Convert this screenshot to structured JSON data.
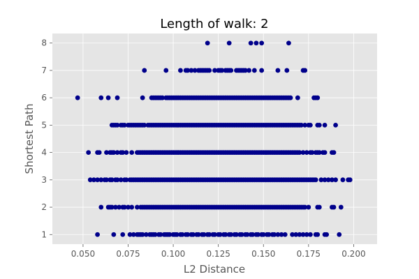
{
  "chart_data": {
    "type": "scatter",
    "title": "Length of walk: 2",
    "xlabel": "L2 Distance",
    "ylabel": "Shortest Path",
    "xlim": [
      0.033,
      0.213
    ],
    "ylim": [
      0.65,
      8.35
    ],
    "x_ticks": [
      0.05,
      0.075,
      0.1,
      0.125,
      0.15,
      0.175,
      0.2
    ],
    "x_tick_labels": [
      "0.050",
      "0.075",
      "0.100",
      "0.125",
      "0.150",
      "0.175",
      "0.200"
    ],
    "y_ticks": [
      1,
      2,
      3,
      4,
      5,
      6,
      7,
      8
    ],
    "y_tick_labels": [
      "1",
      "2",
      "3",
      "4",
      "5",
      "6",
      "7",
      "8"
    ],
    "grid": true,
    "marker_color": "#00008b",
    "background_color": "#e5e5e5",
    "grid_color": "#ffffff",
    "series": [
      {
        "values": [
          {
            "y": 1,
            "x": [
              0.058,
              0.067,
              0.072,
              0.076,
              0.078,
              0.08,
              0.081,
              0.082,
              0.083,
              0.085,
              0.087,
              0.088,
              0.089,
              0.09,
              0.092,
              0.093,
              0.095,
              0.096,
              0.097,
              0.098,
              0.1,
              0.101,
              0.102,
              0.104,
              0.105,
              0.107,
              0.108,
              0.11,
              0.111,
              0.113,
              0.114,
              0.116,
              0.117,
              0.119,
              0.12,
              0.122,
              0.123,
              0.125,
              0.126,
              0.128,
              0.129,
              0.131,
              0.132,
              0.134,
              0.135,
              0.137,
              0.138,
              0.14,
              0.141,
              0.143,
              0.144,
              0.146,
              0.147,
              0.149,
              0.15,
              0.152,
              0.153,
              0.155,
              0.156,
              0.158,
              0.16,
              0.162,
              0.166,
              0.168,
              0.17,
              0.172,
              0.174,
              0.176,
              0.179,
              0.18,
              0.184,
              0.185,
              0.192
            ]
          },
          {
            "y": 2,
            "x": [
              0.06,
              0.064,
              0.065,
              0.066,
              0.068,
              0.07,
              0.072,
              0.073,
              0.075,
              0.077,
              0.08,
              0.082,
              0.083,
              0.084,
              0.085,
              0.086,
              0.087,
              0.088,
              0.089,
              0.09,
              0.091,
              0.092,
              0.093,
              0.094,
              0.095,
              0.096,
              0.097,
              0.098,
              0.099,
              0.1,
              0.101,
              0.102,
              0.103,
              0.104,
              0.105,
              0.106,
              0.107,
              0.108,
              0.109,
              0.11,
              0.111,
              0.112,
              0.113,
              0.114,
              0.115,
              0.116,
              0.117,
              0.118,
              0.119,
              0.12,
              0.121,
              0.122,
              0.123,
              0.124,
              0.125,
              0.126,
              0.127,
              0.128,
              0.129,
              0.13,
              0.131,
              0.132,
              0.133,
              0.134,
              0.135,
              0.136,
              0.137,
              0.138,
              0.139,
              0.14,
              0.141,
              0.142,
              0.143,
              0.144,
              0.145,
              0.146,
              0.147,
              0.148,
              0.149,
              0.15,
              0.151,
              0.152,
              0.153,
              0.154,
              0.155,
              0.156,
              0.157,
              0.158,
              0.159,
              0.16,
              0.161,
              0.162,
              0.163,
              0.164,
              0.165,
              0.166,
              0.167,
              0.168,
              0.169,
              0.17,
              0.171,
              0.172,
              0.173,
              0.175,
              0.18,
              0.181,
              0.188,
              0.189,
              0.193
            ]
          },
          {
            "y": 3,
            "x": [
              0.054,
              0.056,
              0.058,
              0.06,
              0.062,
              0.063,
              0.065,
              0.066,
              0.068,
              0.069,
              0.071,
              0.073,
              0.074,
              0.076,
              0.077,
              0.078,
              0.079,
              0.08,
              0.081,
              0.082,
              0.083,
              0.084,
              0.085,
              0.086,
              0.087,
              0.088,
              0.089,
              0.09,
              0.091,
              0.092,
              0.093,
              0.094,
              0.095,
              0.096,
              0.097,
              0.098,
              0.099,
              0.1,
              0.101,
              0.102,
              0.103,
              0.104,
              0.105,
              0.106,
              0.107,
              0.108,
              0.109,
              0.11,
              0.111,
              0.112,
              0.113,
              0.114,
              0.115,
              0.116,
              0.117,
              0.118,
              0.119,
              0.12,
              0.121,
              0.122,
              0.123,
              0.124,
              0.125,
              0.126,
              0.127,
              0.128,
              0.129,
              0.13,
              0.131,
              0.132,
              0.133,
              0.134,
              0.135,
              0.136,
              0.137,
              0.138,
              0.139,
              0.14,
              0.141,
              0.142,
              0.143,
              0.144,
              0.145,
              0.146,
              0.147,
              0.148,
              0.149,
              0.15,
              0.151,
              0.152,
              0.153,
              0.154,
              0.155,
              0.156,
              0.157,
              0.158,
              0.159,
              0.16,
              0.161,
              0.162,
              0.163,
              0.164,
              0.165,
              0.166,
              0.167,
              0.168,
              0.169,
              0.17,
              0.171,
              0.172,
              0.173,
              0.174,
              0.175,
              0.176,
              0.177,
              0.178,
              0.179,
              0.182,
              0.184,
              0.186,
              0.188,
              0.19,
              0.194,
              0.197,
              0.198
            ]
          },
          {
            "y": 4,
            "x": [
              0.053,
              0.058,
              0.059,
              0.063,
              0.065,
              0.066,
              0.067,
              0.069,
              0.071,
              0.072,
              0.074,
              0.077,
              0.08,
              0.081,
              0.082,
              0.083,
              0.084,
              0.085,
              0.086,
              0.087,
              0.088,
              0.089,
              0.09,
              0.091,
              0.092,
              0.093,
              0.094,
              0.095,
              0.096,
              0.097,
              0.098,
              0.099,
              0.1,
              0.101,
              0.102,
              0.103,
              0.104,
              0.105,
              0.106,
              0.107,
              0.108,
              0.109,
              0.11,
              0.111,
              0.112,
              0.113,
              0.114,
              0.115,
              0.116,
              0.117,
              0.118,
              0.119,
              0.12,
              0.121,
              0.122,
              0.123,
              0.124,
              0.125,
              0.126,
              0.127,
              0.128,
              0.129,
              0.13,
              0.131,
              0.132,
              0.133,
              0.134,
              0.135,
              0.136,
              0.137,
              0.138,
              0.139,
              0.14,
              0.141,
              0.142,
              0.143,
              0.144,
              0.145,
              0.146,
              0.147,
              0.148,
              0.149,
              0.15,
              0.151,
              0.152,
              0.153,
              0.154,
              0.155,
              0.156,
              0.157,
              0.158,
              0.159,
              0.16,
              0.161,
              0.162,
              0.163,
              0.164,
              0.165,
              0.166,
              0.167,
              0.168,
              0.169,
              0.17,
              0.172,
              0.174,
              0.176,
              0.177,
              0.179,
              0.18,
              0.181,
              0.183,
              0.184,
              0.188,
              0.189
            ]
          },
          {
            "y": 5,
            "x": [
              0.066,
              0.067,
              0.068,
              0.069,
              0.071,
              0.072,
              0.073,
              0.075,
              0.076,
              0.077,
              0.078,
              0.079,
              0.08,
              0.081,
              0.082,
              0.083,
              0.084,
              0.086,
              0.087,
              0.088,
              0.089,
              0.09,
              0.091,
              0.092,
              0.093,
              0.094,
              0.095,
              0.096,
              0.097,
              0.098,
              0.099,
              0.1,
              0.101,
              0.102,
              0.103,
              0.104,
              0.105,
              0.106,
              0.107,
              0.108,
              0.109,
              0.11,
              0.111,
              0.112,
              0.113,
              0.114,
              0.115,
              0.116,
              0.117,
              0.118,
              0.119,
              0.12,
              0.121,
              0.122,
              0.123,
              0.124,
              0.125,
              0.126,
              0.127,
              0.128,
              0.129,
              0.13,
              0.131,
              0.132,
              0.133,
              0.134,
              0.135,
              0.136,
              0.137,
              0.138,
              0.139,
              0.14,
              0.141,
              0.142,
              0.143,
              0.144,
              0.145,
              0.146,
              0.147,
              0.148,
              0.149,
              0.15,
              0.151,
              0.152,
              0.153,
              0.154,
              0.155,
              0.156,
              0.157,
              0.158,
              0.159,
              0.16,
              0.161,
              0.162,
              0.163,
              0.164,
              0.165,
              0.166,
              0.167,
              0.168,
              0.169,
              0.17,
              0.171,
              0.173,
              0.175,
              0.176,
              0.18,
              0.181,
              0.184,
              0.19
            ]
          },
          {
            "y": 6,
            "x": [
              0.047,
              0.06,
              0.064,
              0.069,
              0.083,
              0.088,
              0.089,
              0.09,
              0.091,
              0.092,
              0.093,
              0.094,
              0.096,
              0.097,
              0.098,
              0.099,
              0.1,
              0.101,
              0.102,
              0.103,
              0.104,
              0.105,
              0.106,
              0.107,
              0.108,
              0.109,
              0.11,
              0.111,
              0.112,
              0.113,
              0.114,
              0.115,
              0.116,
              0.117,
              0.118,
              0.119,
              0.12,
              0.121,
              0.122,
              0.123,
              0.124,
              0.125,
              0.126,
              0.127,
              0.128,
              0.129,
              0.13,
              0.131,
              0.132,
              0.133,
              0.134,
              0.135,
              0.136,
              0.137,
              0.138,
              0.139,
              0.14,
              0.141,
              0.142,
              0.143,
              0.144,
              0.145,
              0.146,
              0.147,
              0.148,
              0.149,
              0.15,
              0.151,
              0.152,
              0.153,
              0.154,
              0.155,
              0.156,
              0.157,
              0.158,
              0.159,
              0.16,
              0.161,
              0.162,
              0.163,
              0.164,
              0.165,
              0.169,
              0.178,
              0.179,
              0.18
            ]
          },
          {
            "y": 7,
            "x": [
              0.084,
              0.096,
              0.104,
              0.107,
              0.108,
              0.11,
              0.112,
              0.114,
              0.115,
              0.116,
              0.117,
              0.118,
              0.119,
              0.12,
              0.123,
              0.125,
              0.126,
              0.127,
              0.129,
              0.13,
              0.131,
              0.132,
              0.135,
              0.136,
              0.137,
              0.138,
              0.139,
              0.14,
              0.142,
              0.145,
              0.149,
              0.158,
              0.163,
              0.172,
              0.173
            ]
          },
          {
            "y": 8,
            "x": [
              0.119,
              0.131,
              0.143,
              0.146,
              0.149,
              0.164
            ]
          }
        ]
      }
    ]
  }
}
